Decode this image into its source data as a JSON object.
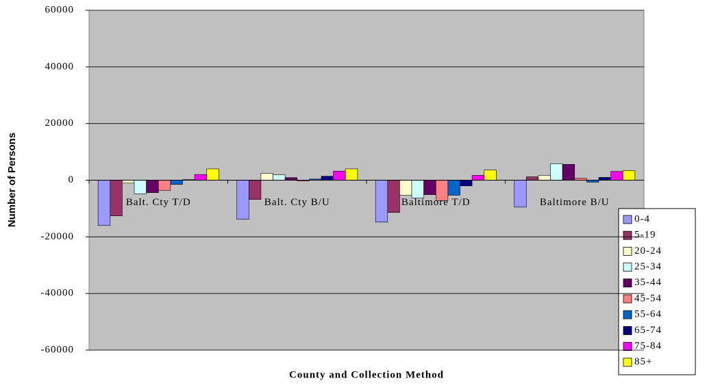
{
  "chart_data": {
    "type": "bar",
    "y_label": "Number of Persons",
    "x_label": "County and Collection Method",
    "categories": [
      "Balt. Cty T/D",
      "Balt. Cty B/U",
      "Baltimore T/D",
      "Baltimore B/U"
    ],
    "series": [
      {
        "name": "0-4",
        "color": "#9999ff",
        "values": [
          -16000,
          -13800,
          -14800,
          -9500
        ]
      },
      {
        "name": "5-19",
        "color": "#993366",
        "values": [
          -12600,
          -6800,
          -11400,
          1200
        ]
      },
      {
        "name": "20-24",
        "color": "#ffffcc",
        "values": [
          -1000,
          2400,
          -5300,
          1700
        ]
      },
      {
        "name": "25-34",
        "color": "#ccffff",
        "values": [
          -4800,
          1900,
          -6300,
          5800
        ]
      },
      {
        "name": "35-44",
        "color": "#660066",
        "values": [
          -4400,
          900,
          -5100,
          5600
        ]
      },
      {
        "name": "45-54",
        "color": "#ff8080",
        "values": [
          -3600,
          -300,
          -7200,
          700
        ]
      },
      {
        "name": "55-64",
        "color": "#0066cc",
        "values": [
          -1500,
          400,
          -5300,
          -700
        ]
      },
      {
        "name": "65-74",
        "color": "#000080",
        "values": [
          200,
          1400,
          -2000,
          1000
        ]
      },
      {
        "name": "75-84",
        "color": "#ff00ff",
        "values": [
          2000,
          3200,
          1700,
          3100
        ]
      },
      {
        "name": "85+",
        "color": "#ffff00",
        "values": [
          4000,
          4000,
          3600,
          3400
        ]
      }
    ],
    "ylim": [
      -60000,
      60000
    ],
    "yticks": [
      -60000,
      -40000,
      -20000,
      0,
      20000,
      40000,
      60000
    ],
    "grid": true
  }
}
